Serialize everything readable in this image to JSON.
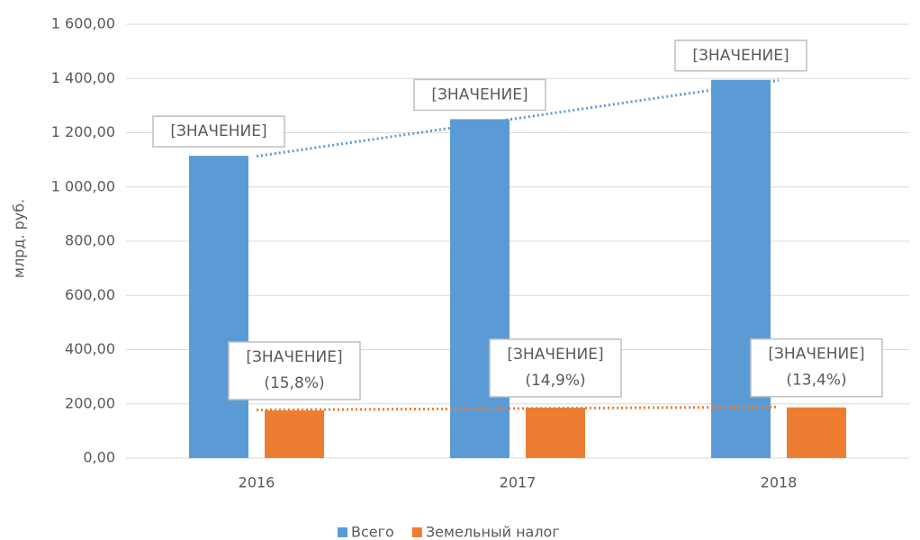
{
  "chart_data": {
    "type": "bar",
    "y_axis_label": "млрд. руб.",
    "categories": [
      "2016",
      "2017",
      "2018"
    ],
    "series": [
      {
        "name": "Всего",
        "color": "#5b9bd5",
        "values": [
          1115,
          1250,
          1395
        ],
        "value_labels": [
          "[ЗНАЧЕНИЕ]",
          "[ЗНАЧЕНИЕ]",
          "[ЗНАЧЕНИЕ]"
        ],
        "trendline": true
      },
      {
        "name": "Земельный налог",
        "color": "#ed7d31",
        "values": [
          176,
          186,
          187
        ],
        "value_labels": [
          "[ЗНАЧЕНИЕ]",
          "[ЗНАЧЕНИЕ]",
          "[ЗНАЧЕНИЕ]"
        ],
        "share_labels": [
          "(15,8%)",
          "(14,9%)",
          "(13,4%)"
        ],
        "trendline": true
      }
    ],
    "ylim": [
      0,
      1600
    ],
    "yticks": [
      {
        "value": 0,
        "label": "0,00"
      },
      {
        "value": 200,
        "label": "200,00"
      },
      {
        "value": 400,
        "label": "400,00"
      },
      {
        "value": 600,
        "label": "600,00"
      },
      {
        "value": 800,
        "label": "800,00"
      },
      {
        "value": 1000,
        "label": "1 000,00"
      },
      {
        "value": 1200,
        "label": "1 200,00"
      },
      {
        "value": 1400,
        "label": "1 400,00"
      },
      {
        "value": 1600,
        "label": "1 600,00"
      }
    ],
    "grid": true,
    "legend": "bottom"
  }
}
